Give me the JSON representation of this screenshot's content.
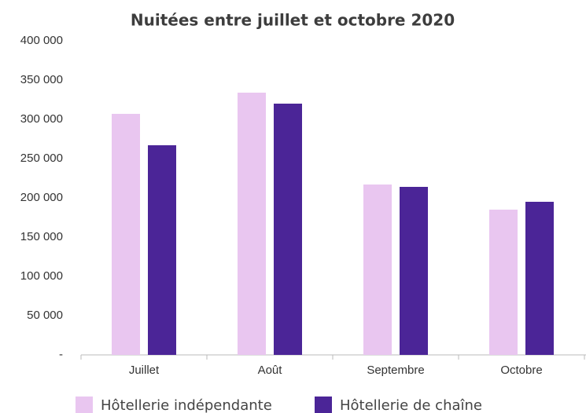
{
  "chart_data": {
    "type": "bar",
    "title": "Nuitées entre juillet et octobre 2020",
    "categories": [
      "Juillet",
      "Août",
      "Septembre",
      "Octobre"
    ],
    "series": [
      {
        "name": "Hôtellerie indépendante",
        "color": "#e9c6f0",
        "values": [
          307000,
          334000,
          217000,
          185000
        ]
      },
      {
        "name": "Hôtellerie de chaîne",
        "color": "#4b2597",
        "values": [
          267000,
          320000,
          214000,
          195000
        ]
      }
    ],
    "ylim": [
      0,
      400000
    ],
    "yticks": [
      {
        "value": 0,
        "label": "-"
      },
      {
        "value": 50000,
        "label": "50 000"
      },
      {
        "value": 100000,
        "label": "100 000"
      },
      {
        "value": 150000,
        "label": "150 000"
      },
      {
        "value": 200000,
        "label": "200 000"
      },
      {
        "value": 250000,
        "label": "250 000"
      },
      {
        "value": 300000,
        "label": "300 000"
      },
      {
        "value": 350000,
        "label": "350 000"
      },
      {
        "value": 400000,
        "label": "400 000"
      }
    ],
    "grid": false,
    "legend": "bottom"
  }
}
